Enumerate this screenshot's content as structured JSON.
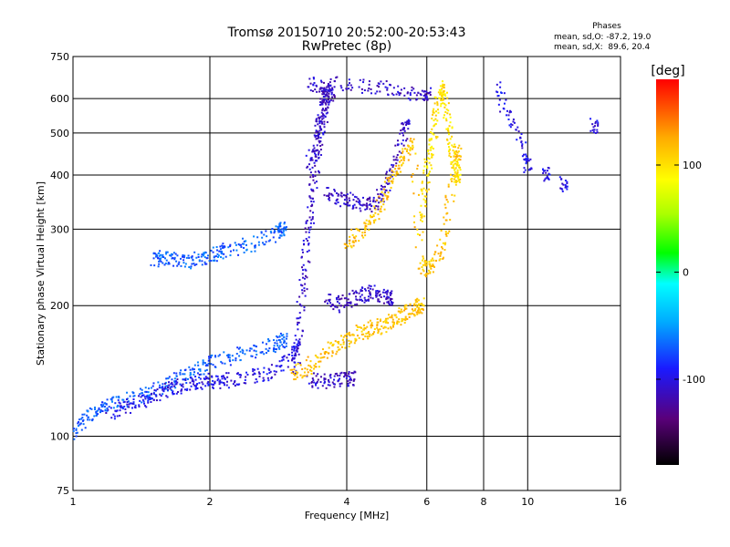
{
  "chart_data": {
    "type": "scatter",
    "title": "Tromsø 20150710 20:52:00-20:53:43",
    "subtitle": "RwPretec (8p)",
    "xlabel": "Frequency [MHz]",
    "ylabel": "Stationary phase Virtual Height [km]",
    "x_scale": "log",
    "y_scale": "log",
    "xlim": [
      1,
      16
    ],
    "ylim": [
      75,
      750
    ],
    "grid": true,
    "x_ticks": [
      1,
      2,
      4,
      6,
      8,
      10,
      16
    ],
    "x_tick_labels": [
      "1",
      "2",
      "4",
      "6",
      "8",
      "10",
      "16"
    ],
    "y_ticks": [
      75,
      100,
      200,
      300,
      400,
      500,
      600,
      750
    ],
    "y_tick_labels": [
      "75",
      "100",
      "200",
      "300",
      "400",
      "500",
      "600",
      "750"
    ],
    "legend_stats": {
      "heading": "Phases",
      "line1": "mean, sd,O: -87.2, 19.0",
      "line2": "mean, sd,X:  89.6, 20.4"
    },
    "colorbar": {
      "label": "[deg]",
      "range": [
        -180,
        180
      ],
      "ticks": [
        100,
        0,
        -100
      ],
      "tick_labels": [
        "100",
        "0",
        "-100"
      ],
      "colors": [
        "#000000",
        "#5a007a",
        "#1a1aff",
        "#00aaff",
        "#00ffff",
        "#00ff00",
        "#aaff00",
        "#ffff00",
        "#ffaa00",
        "#ff0000"
      ]
    },
    "series": [
      {
        "phase_deg": -70,
        "x": [
          1.0,
          1.05,
          1.1,
          1.15,
          1.2,
          1.3,
          1.4,
          1.5,
          1.6,
          1.7,
          1.8,
          1.9,
          2.0,
          2.2,
          2.4,
          2.6,
          2.8,
          2.9
        ],
        "y": [
          100,
          108,
          113,
          116,
          118,
          120,
          123,
          127,
          131,
          135,
          139,
          143,
          148,
          152,
          156,
          160,
          163,
          166
        ]
      },
      {
        "phase_deg": -100,
        "x": [
          1.2,
          1.3,
          1.4,
          1.5,
          1.6,
          1.7,
          1.8,
          1.9,
          2.0,
          2.1,
          2.2,
          2.4,
          2.6,
          2.8,
          3.0,
          3.1
        ],
        "y": [
          112,
          116,
          120,
          124,
          128,
          130,
          132,
          133,
          134,
          134,
          135,
          136,
          138,
          142,
          150,
          160
        ]
      },
      {
        "phase_deg": -70,
        "x": [
          1.5,
          1.55,
          1.6,
          1.7,
          1.8,
          1.9,
          2.0,
          2.1,
          2.2,
          2.4,
          2.6,
          2.8,
          2.9
        ],
        "y": [
          255,
          257,
          258,
          255,
          253,
          257,
          261,
          265,
          268,
          275,
          283,
          292,
          300
        ]
      },
      {
        "phase_deg": -110,
        "x": [
          3.1,
          3.15,
          3.2,
          3.25,
          3.3,
          3.35,
          3.4,
          3.45,
          3.5,
          3.55,
          3.6,
          3.65,
          3.7,
          3.3,
          3.4,
          3.5,
          3.6
        ],
        "y": [
          140,
          180,
          220,
          260,
          300,
          350,
          400,
          450,
          500,
          560,
          620,
          640,
          600,
          420,
          480,
          540,
          610
        ]
      },
      {
        "phase_deg": -110,
        "x": [
          3.6,
          3.8,
          4.0,
          4.2,
          4.4,
          4.6,
          4.8,
          5.0,
          5.2,
          5.4
        ],
        "y": [
          360,
          355,
          350,
          345,
          340,
          345,
          360,
          400,
          460,
          520
        ]
      },
      {
        "phase_deg": -110,
        "x": [
          3.6,
          3.8,
          4.0,
          4.2,
          4.4,
          4.6,
          4.8,
          5.0
        ],
        "y": [
          205,
          200,
          205,
          210,
          213,
          215,
          212,
          208
        ]
      },
      {
        "phase_deg": -110,
        "x": [
          3.3,
          3.5,
          3.7,
          3.9,
          4.1
        ],
        "y": [
          135,
          134,
          134,
          135,
          136
        ]
      },
      {
        "phase_deg": 115,
        "x": [
          3.0,
          3.2,
          3.4,
          3.6,
          3.8,
          4.0,
          4.2,
          4.4,
          4.6,
          4.8,
          5.0,
          5.2,
          5.4,
          5.6,
          5.8
        ],
        "y": [
          140,
          142,
          148,
          155,
          162,
          168,
          172,
          175,
          178,
          180,
          184,
          188,
          192,
          196,
          200
        ]
      },
      {
        "phase_deg": 115,
        "x": [
          4.0,
          4.2,
          4.4,
          4.6,
          4.8,
          5.0,
          5.2,
          5.4,
          5.6,
          5.8,
          6.0,
          6.2,
          6.4,
          6.6,
          6.8,
          7.0
        ],
        "y": [
          280,
          290,
          300,
          320,
          350,
          390,
          420,
          450,
          480,
          250,
          240,
          245,
          260,
          300,
          380,
          450
        ]
      },
      {
        "phase_deg": 100,
        "x": [
          5.8,
          5.9,
          6.0,
          6.1,
          6.2,
          6.3,
          6.4,
          6.5,
          6.6,
          6.7,
          6.8,
          6.9,
          7.0
        ],
        "y": [
          300,
          350,
          400,
          450,
          500,
          560,
          620,
          640,
          600,
          520,
          460,
          420,
          400
        ]
      },
      {
        "phase_deg": -110,
        "x": [
          3.3,
          3.5,
          4.0,
          4.5,
          5.0,
          5.5,
          6.0
        ],
        "y": [
          650,
          640,
          650,
          640,
          630,
          620,
          610
        ]
      },
      {
        "phase_deg": -100,
        "x": [
          8.5,
          9.0,
          9.5,
          10.0,
          11.0,
          12.0,
          14.0
        ],
        "y": [
          640,
          560,
          500,
          420,
          400,
          380,
          520
        ]
      }
    ]
  }
}
